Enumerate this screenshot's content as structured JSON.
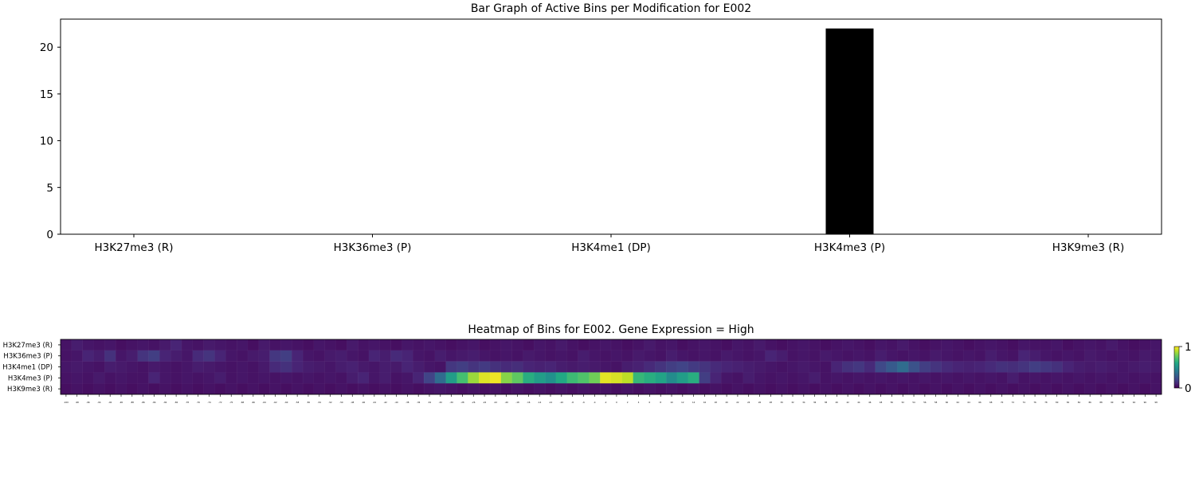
{
  "chart_data": [
    {
      "type": "bar",
      "title": "Bar Graph of Active Bins per Modification for E002",
      "categories": [
        "H3K27me3 (R)",
        "H3K36me3 (P)",
        "H3K4me1 (DP)",
        "H3K4me3 (P)",
        "H3K9me3 (R)"
      ],
      "values": [
        0,
        0,
        0,
        22,
        0
      ],
      "yticks": [
        0,
        5,
        10,
        15,
        20
      ],
      "ylim": [
        0,
        23
      ],
      "bar_color": "#000000",
      "grid": false
    },
    {
      "type": "heatmap",
      "title": "Heatmap of Bins for E002. Gene Expression = High",
      "rows": [
        "H3K27me3 (R)",
        "H3K36me3 (P)",
        "H3K4me1 (DP)",
        "H3K4me3 (P)",
        "H3K9me3 (R)"
      ],
      "col_start": -100,
      "col_end": 100,
      "col_step": 2,
      "colormap": "viridis",
      "colorbar_ticks": [
        0,
        1
      ],
      "values": [
        [
          0.05,
          0.08,
          0.06,
          0.05,
          0.06,
          0.04,
          0.05,
          0.06,
          0.05,
          0.07,
          0.1,
          0.06,
          0.05,
          0.07,
          0.06,
          0.05,
          0.06,
          0.04,
          0.07,
          0.05,
          0.06,
          0.05,
          0.04,
          0.06,
          0.05,
          0.04,
          0.07,
          0.05,
          0.06,
          0.05,
          0.04,
          0.06,
          0.05,
          0.06,
          0.05,
          0.04,
          0.05,
          0.06,
          0.04,
          0.05,
          0.06,
          0.05,
          0.04,
          0.06,
          0.05,
          0.07,
          0.05,
          0.04,
          0.05,
          0.06,
          0.05,
          0.04,
          0.05,
          0.07,
          0.05,
          0.06,
          0.04,
          0.05,
          0.06,
          0.05,
          0.04,
          0.06,
          0.05,
          0.07,
          0.05,
          0.04,
          0.05,
          0.06,
          0.05,
          0.04,
          0.05,
          0.06,
          0.05,
          0.04,
          0.06,
          0.05,
          0.07,
          0.05,
          0.04,
          0.05,
          0.06,
          0.05,
          0.04,
          0.05,
          0.06,
          0.05,
          0.04,
          0.06,
          0.05,
          0.05,
          0.06,
          0.04,
          0.05,
          0.06,
          0.05,
          0.07,
          0.05,
          0.04,
          0.05,
          0.06
        ],
        [
          0.05,
          0.06,
          0.1,
          0.08,
          0.14,
          0.06,
          0.08,
          0.15,
          0.18,
          0.1,
          0.08,
          0.06,
          0.12,
          0.15,
          0.1,
          0.06,
          0.05,
          0.07,
          0.08,
          0.16,
          0.18,
          0.1,
          0.06,
          0.05,
          0.07,
          0.08,
          0.06,
          0.05,
          0.1,
          0.08,
          0.12,
          0.1,
          0.06,
          0.05,
          0.08,
          0.06,
          0.07,
          0.08,
          0.06,
          0.05,
          0.06,
          0.05,
          0.07,
          0.06,
          0.05,
          0.06,
          0.05,
          0.08,
          0.06,
          0.05,
          0.06,
          0.05,
          0.07,
          0.06,
          0.05,
          0.08,
          0.06,
          0.05,
          0.06,
          0.05,
          0.07,
          0.06,
          0.05,
          0.06,
          0.1,
          0.08,
          0.05,
          0.06,
          0.05,
          0.07,
          0.06,
          0.05,
          0.06,
          0.05,
          0.08,
          0.06,
          0.05,
          0.06,
          0.05,
          0.07,
          0.06,
          0.05,
          0.06,
          0.05,
          0.08,
          0.06,
          0.05,
          0.1,
          0.08,
          0.06,
          0.05,
          0.06,
          0.05,
          0.07,
          0.06,
          0.05,
          0.06,
          0.05,
          0.07,
          0.06
        ],
        [
          0.06,
          0.07,
          0.06,
          0.05,
          0.08,
          0.07,
          0.06,
          0.05,
          0.07,
          0.06,
          0.05,
          0.06,
          0.08,
          0.07,
          0.06,
          0.05,
          0.06,
          0.05,
          0.07,
          0.12,
          0.14,
          0.1,
          0.08,
          0.07,
          0.06,
          0.08,
          0.09,
          0.07,
          0.06,
          0.08,
          0.07,
          0.1,
          0.08,
          0.06,
          0.05,
          0.16,
          0.18,
          0.15,
          0.17,
          0.14,
          0.12,
          0.13,
          0.1,
          0.09,
          0.1,
          0.08,
          0.07,
          0.08,
          0.07,
          0.06,
          0.05,
          0.08,
          0.09,
          0.12,
          0.15,
          0.18,
          0.2,
          0.17,
          0.15,
          0.12,
          0.1,
          0.09,
          0.08,
          0.07,
          0.06,
          0.05,
          0.06,
          0.07,
          0.06,
          0.05,
          0.1,
          0.14,
          0.16,
          0.12,
          0.22,
          0.28,
          0.35,
          0.25,
          0.18,
          0.15,
          0.12,
          0.1,
          0.09,
          0.1,
          0.12,
          0.14,
          0.13,
          0.15,
          0.18,
          0.16,
          0.14,
          0.1,
          0.08,
          0.07,
          0.08,
          0.07,
          0.06,
          0.07,
          0.08,
          0.07
        ],
        [
          0.05,
          0.06,
          0.05,
          0.07,
          0.05,
          0.06,
          0.05,
          0.05,
          0.1,
          0.06,
          0.05,
          0.06,
          0.05,
          0.06,
          0.08,
          0.05,
          0.06,
          0.05,
          0.06,
          0.05,
          0.06,
          0.05,
          0.06,
          0.05,
          0.06,
          0.05,
          0.08,
          0.1,
          0.06,
          0.08,
          0.05,
          0.06,
          0.1,
          0.2,
          0.35,
          0.55,
          0.7,
          0.85,
          0.95,
          0.98,
          0.82,
          0.75,
          0.62,
          0.55,
          0.5,
          0.6,
          0.68,
          0.72,
          0.78,
          0.96,
          0.94,
          0.9,
          0.66,
          0.62,
          0.58,
          0.48,
          0.55,
          0.62,
          0.18,
          0.1,
          0.06,
          0.05,
          0.08,
          0.06,
          0.05,
          0.06,
          0.05,
          0.06,
          0.08,
          0.05,
          0.06,
          0.05,
          0.06,
          0.05,
          0.06,
          0.05,
          0.06,
          0.05,
          0.06,
          0.05,
          0.06,
          0.05,
          0.06,
          0.05,
          0.06,
          0.05,
          0.08,
          0.05,
          0.06,
          0.05,
          0.06,
          0.05,
          0.06,
          0.05,
          0.06,
          0.05,
          0.06,
          0.05,
          0.06,
          0.05
        ],
        [
          0.04,
          0.05,
          0.04,
          0.05,
          0.04,
          0.05,
          0.04,
          0.05,
          0.04,
          0.05,
          0.04,
          0.05,
          0.04,
          0.05,
          0.04,
          0.05,
          0.04,
          0.05,
          0.04,
          0.05,
          0.04,
          0.05,
          0.04,
          0.05,
          0.04,
          0.05,
          0.04,
          0.05,
          0.04,
          0.05,
          0.04,
          0.05,
          0.04,
          0.05,
          0.06,
          0.05,
          0.04,
          0.05,
          0.04,
          0.05,
          0.04,
          0.05,
          0.04,
          0.05,
          0.04,
          0.05,
          0.04,
          0.05,
          0.04,
          0.05,
          0.04,
          0.05,
          0.04,
          0.05,
          0.04,
          0.05,
          0.04,
          0.05,
          0.04,
          0.05,
          0.04,
          0.05,
          0.04,
          0.05,
          0.04,
          0.05,
          0.04,
          0.05,
          0.04,
          0.05,
          0.04,
          0.05,
          0.04,
          0.05,
          0.04,
          0.05,
          0.04,
          0.05,
          0.04,
          0.05,
          0.04,
          0.05,
          0.04,
          0.05,
          0.04,
          0.05,
          0.04,
          0.05,
          0.04,
          0.05,
          0.04,
          0.05,
          0.04,
          0.05,
          0.04,
          0.05,
          0.04,
          0.05,
          0.04,
          0.05
        ]
      ]
    }
  ]
}
